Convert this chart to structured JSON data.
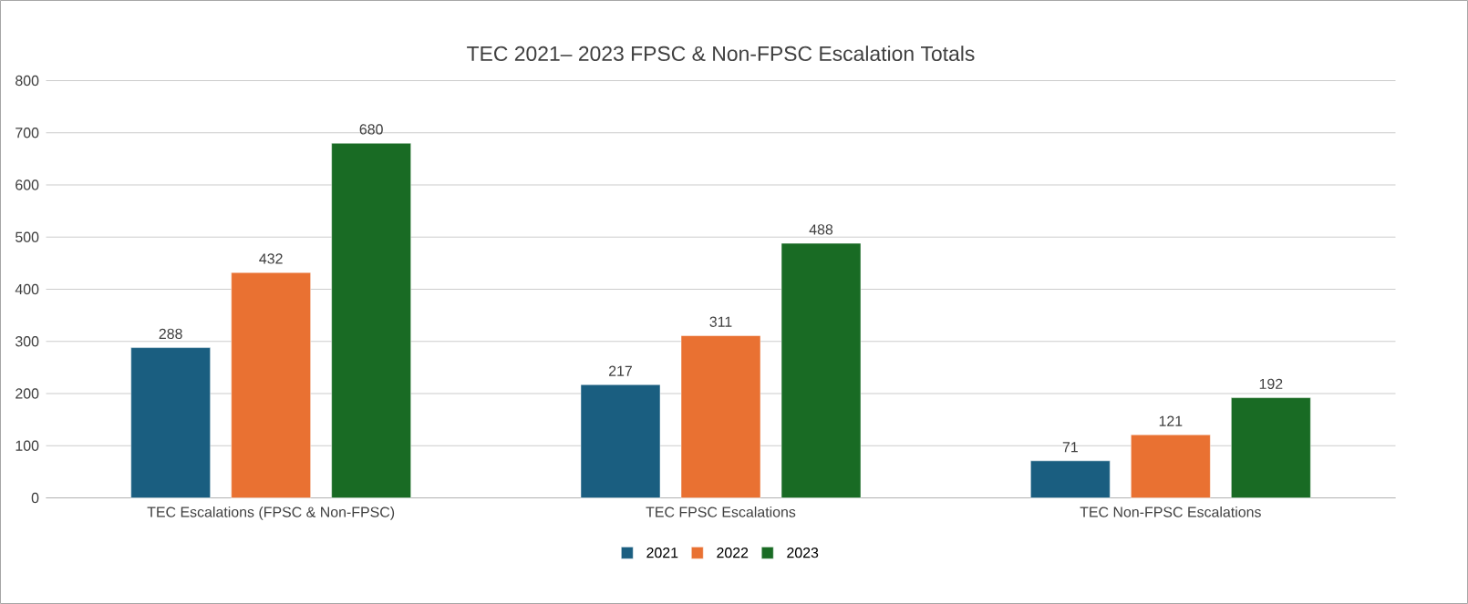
{
  "chart_data": {
    "type": "bar",
    "title": "TEC 2021– 2023 FPSC & Non-FPSC Escalation Totals",
    "categories": [
      "TEC Escalations (FPSC & Non-FPSC)",
      "TEC FPSC Escalations",
      "TEC Non-FPSC Escalations"
    ],
    "series": [
      {
        "name": "2021",
        "color": "#1a5e80",
        "values": [
          288,
          217,
          71
        ]
      },
      {
        "name": "2022",
        "color": "#e97132",
        "values": [
          432,
          311,
          121
        ]
      },
      {
        "name": "2023",
        "color": "#196b24",
        "values": [
          680,
          488,
          192
        ]
      }
    ],
    "ylim": [
      0,
      800
    ],
    "yticks": [
      0,
      100,
      200,
      300,
      400,
      500,
      600,
      700,
      800
    ],
    "grid": "y",
    "legend": "bottom",
    "data_labels": true
  }
}
